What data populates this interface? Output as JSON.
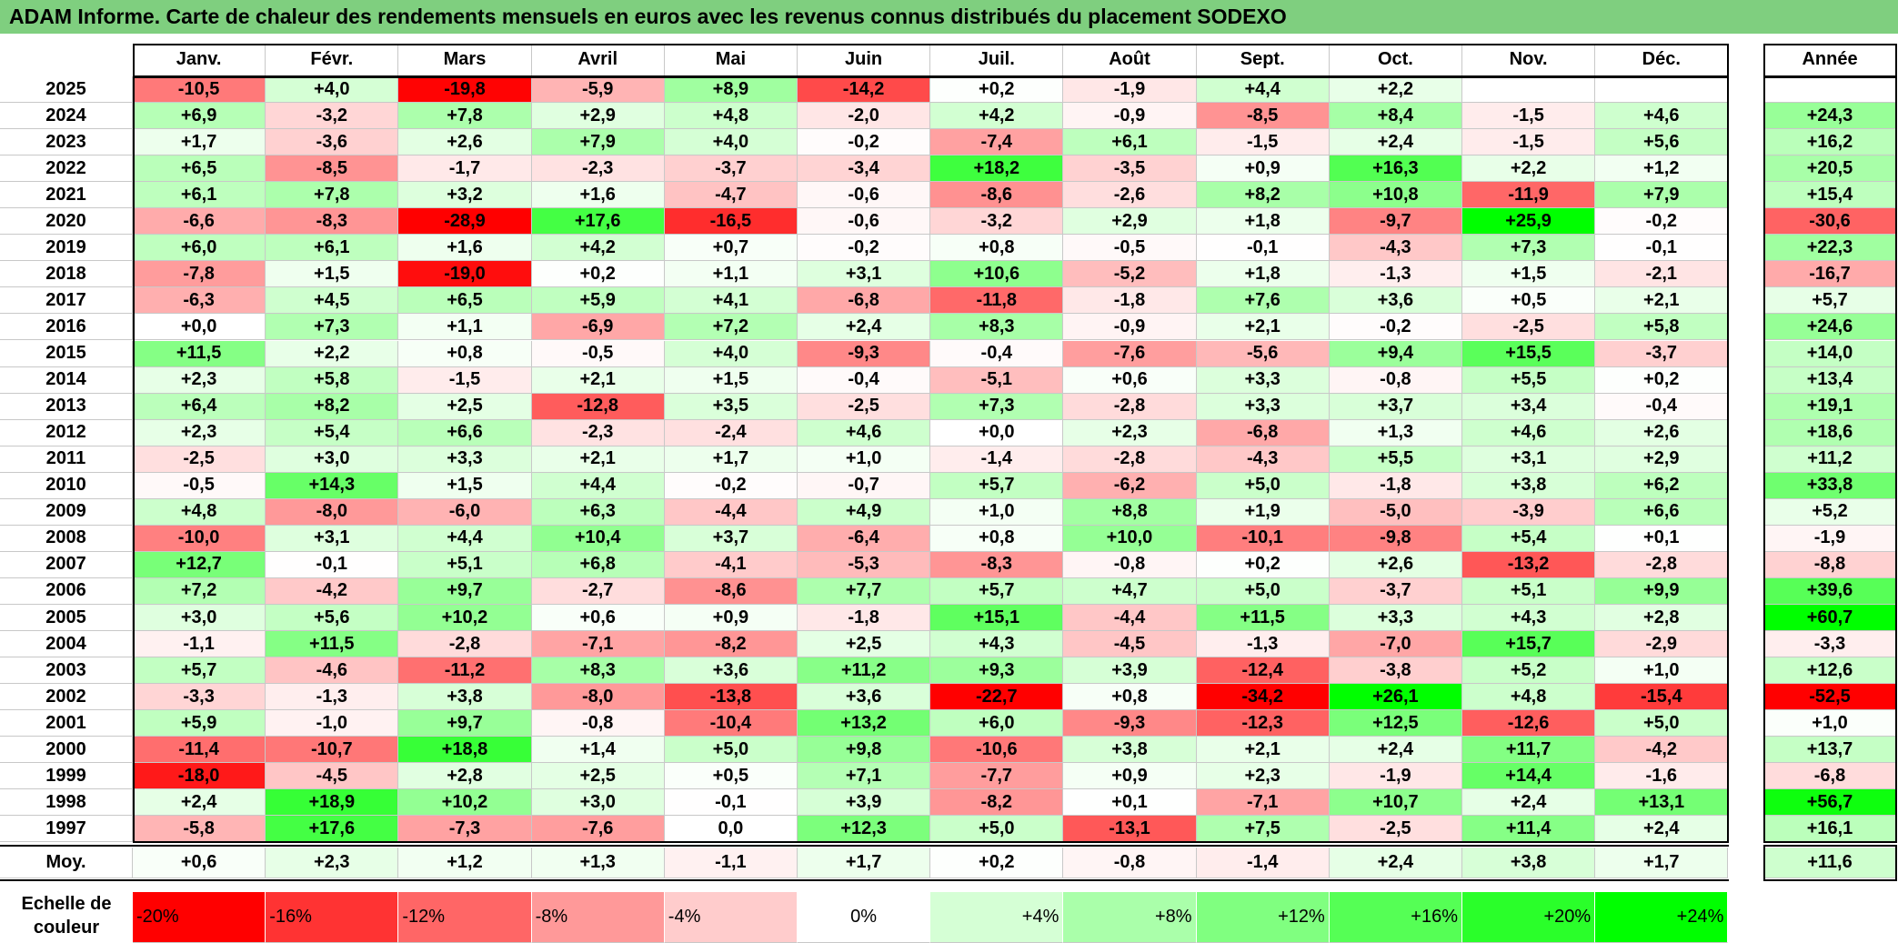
{
  "title": "ADAM Informe. Carte de chaleur des rendements mensuels en euros avec les revenus connus distribués du placement SODEXO",
  "chart_data": {
    "type": "heatmap",
    "columns": [
      "Janv.",
      "Févr.",
      "Mars",
      "Avril",
      "Mai",
      "Juin",
      "Juil.",
      "Août",
      "Sept.",
      "Oct.",
      "Nov.",
      "Déc."
    ],
    "year_column": "Année",
    "rows": [
      {
        "label": "2025",
        "values": [
          "-10,5",
          "+4,0",
          "-19,8",
          "-5,9",
          "+8,9",
          "-14,2",
          "+0,2",
          "-1,9",
          "+4,4",
          "+2,2",
          "",
          ""
        ],
        "year": ""
      },
      {
        "label": "2024",
        "values": [
          "+6,9",
          "-3,2",
          "+7,8",
          "+2,9",
          "+4,8",
          "-2,0",
          "+4,2",
          "-0,9",
          "-8,5",
          "+8,4",
          "-1,5",
          "+4,6"
        ],
        "year": "+24,3"
      },
      {
        "label": "2023",
        "values": [
          "+1,7",
          "-3,6",
          "+2,6",
          "+7,9",
          "+4,0",
          "-0,2",
          "-7,4",
          "+6,1",
          "-1,5",
          "+2,4",
          "-1,5",
          "+5,6"
        ],
        "year": "+16,2"
      },
      {
        "label": "2022",
        "values": [
          "+6,5",
          "-8,5",
          "-1,7",
          "-2,3",
          "-3,7",
          "-3,4",
          "+18,2",
          "-3,5",
          "+0,9",
          "+16,3",
          "+2,2",
          "+1,2"
        ],
        "year": "+20,5"
      },
      {
        "label": "2021",
        "values": [
          "+6,1",
          "+7,8",
          "+3,2",
          "+1,6",
          "-4,7",
          "-0,6",
          "-8,6",
          "-2,6",
          "+8,2",
          "+10,8",
          "-11,9",
          "+7,9"
        ],
        "year": "+15,4"
      },
      {
        "label": "2020",
        "values": [
          "-6,6",
          "-8,3",
          "-28,9",
          "+17,6",
          "-16,5",
          "-0,6",
          "-3,2",
          "+2,9",
          "+1,8",
          "-9,7",
          "+25,9",
          "-0,2"
        ],
        "year": "-30,6"
      },
      {
        "label": "2019",
        "values": [
          "+6,0",
          "+6,1",
          "+1,6",
          "+4,2",
          "+0,7",
          "-0,2",
          "+0,8",
          "-0,5",
          "-0,1",
          "-4,3",
          "+7,3",
          "-0,1"
        ],
        "year": "+22,3"
      },
      {
        "label": "2018",
        "values": [
          "-7,8",
          "+1,5",
          "-19,0",
          "+0,2",
          "+1,1",
          "+3,1",
          "+10,6",
          "-5,2",
          "+1,8",
          "-1,3",
          "+1,5",
          "-2,1"
        ],
        "year": "-16,7"
      },
      {
        "label": "2017",
        "values": [
          "-6,3",
          "+4,5",
          "+6,5",
          "+5,9",
          "+4,1",
          "-6,8",
          "-11,8",
          "-1,8",
          "+7,6",
          "+3,6",
          "+0,5",
          "+2,1"
        ],
        "year": "+5,7"
      },
      {
        "label": "2016",
        "values": [
          "+0,0",
          "+7,3",
          "+1,1",
          "-6,9",
          "+7,2",
          "+2,4",
          "+8,3",
          "-0,9",
          "+2,1",
          "-0,2",
          "-2,5",
          "+5,8"
        ],
        "year": "+24,6"
      },
      {
        "label": "2015",
        "values": [
          "+11,5",
          "+2,2",
          "+0,8",
          "-0,5",
          "+4,0",
          "-9,3",
          "-0,4",
          "-7,6",
          "-5,6",
          "+9,4",
          "+15,5",
          "-3,7"
        ],
        "year": "+14,0"
      },
      {
        "label": "2014",
        "values": [
          "+2,3",
          "+5,8",
          "-1,5",
          "+2,1",
          "+1,5",
          "-0,4",
          "-5,1",
          "+0,6",
          "+3,3",
          "-0,8",
          "+5,5",
          "+0,2"
        ],
        "year": "+13,4"
      },
      {
        "label": "2013",
        "values": [
          "+6,4",
          "+8,2",
          "+2,5",
          "-12,8",
          "+3,5",
          "-2,5",
          "+7,3",
          "-2,8",
          "+3,3",
          "+3,7",
          "+3,4",
          "-0,4"
        ],
        "year": "+19,1"
      },
      {
        "label": "2012",
        "values": [
          "+2,3",
          "+5,4",
          "+6,6",
          "-2,3",
          "-2,4",
          "+4,6",
          "+0,0",
          "+2,3",
          "-6,8",
          "+1,3",
          "+4,6",
          "+2,6"
        ],
        "year": "+18,6"
      },
      {
        "label": "2011",
        "values": [
          "-2,5",
          "+3,0",
          "+3,3",
          "+2,1",
          "+1,7",
          "+1,0",
          "-1,4",
          "-2,8",
          "-4,3",
          "+5,5",
          "+3,1",
          "+2,9"
        ],
        "year": "+11,2"
      },
      {
        "label": "2010",
        "values": [
          "-0,5",
          "+14,3",
          "+1,5",
          "+4,4",
          "-0,2",
          "-0,7",
          "+5,7",
          "-6,2",
          "+5,0",
          "-1,8",
          "+3,8",
          "+6,2"
        ],
        "year": "+33,8"
      },
      {
        "label": "2009",
        "values": [
          "+4,8",
          "-8,0",
          "-6,0",
          "+6,3",
          "-4,4",
          "+4,9",
          "+1,0",
          "+8,8",
          "+1,9",
          "-5,0",
          "-3,9",
          "+6,6"
        ],
        "year": "+5,2"
      },
      {
        "label": "2008",
        "values": [
          "-10,0",
          "+3,1",
          "+4,4",
          "+10,4",
          "+3,7",
          "-6,4",
          "+0,8",
          "+10,0",
          "-10,1",
          "-9,8",
          "+5,4",
          "+0,1"
        ],
        "year": "-1,9"
      },
      {
        "label": "2007",
        "values": [
          "+12,7",
          "-0,1",
          "+5,1",
          "+6,8",
          "-4,1",
          "-5,3",
          "-8,3",
          "-0,8",
          "+0,2",
          "+2,6",
          "-13,2",
          "-2,8"
        ],
        "year": "-8,8"
      },
      {
        "label": "2006",
        "values": [
          "+7,2",
          "-4,2",
          "+9,7",
          "-2,7",
          "-8,6",
          "+7,7",
          "+5,7",
          "+4,7",
          "+5,0",
          "-3,7",
          "+5,1",
          "+9,9"
        ],
        "year": "+39,6"
      },
      {
        "label": "2005",
        "values": [
          "+3,0",
          "+5,6",
          "+10,2",
          "+0,6",
          "+0,9",
          "-1,8",
          "+15,1",
          "-4,4",
          "+11,5",
          "+3,3",
          "+4,3",
          "+2,8"
        ],
        "year": "+60,7"
      },
      {
        "label": "2004",
        "values": [
          "-1,1",
          "+11,5",
          "-2,8",
          "-7,1",
          "-8,2",
          "+2,5",
          "+4,3",
          "-4,5",
          "-1,3",
          "-7,0",
          "+15,7",
          "-2,9"
        ],
        "year": "-3,3"
      },
      {
        "label": "2003",
        "values": [
          "+5,7",
          "-4,6",
          "-11,2",
          "+8,3",
          "+3,6",
          "+11,2",
          "+9,3",
          "+3,9",
          "-12,4",
          "-3,8",
          "+5,2",
          "+1,0"
        ],
        "year": "+12,6"
      },
      {
        "label": "2002",
        "values": [
          "-3,3",
          "-1,3",
          "+3,8",
          "-8,0",
          "-13,8",
          "+3,6",
          "-22,7",
          "+0,8",
          "-34,2",
          "+26,1",
          "+4,8",
          "-15,4"
        ],
        "year": "-52,5"
      },
      {
        "label": "2001",
        "values": [
          "+5,9",
          "-1,0",
          "+9,7",
          "-0,8",
          "-10,4",
          "+13,2",
          "+6,0",
          "-9,3",
          "-12,3",
          "+12,5",
          "-12,6",
          "+5,0"
        ],
        "year": "+1,0"
      },
      {
        "label": "2000",
        "values": [
          "-11,4",
          "-10,7",
          "+18,8",
          "+1,4",
          "+5,0",
          "+9,8",
          "-10,6",
          "+3,8",
          "+2,1",
          "+2,4",
          "+11,7",
          "-4,2"
        ],
        "year": "+13,7"
      },
      {
        "label": "1999",
        "values": [
          "-18,0",
          "-4,5",
          "+2,8",
          "+2,5",
          "+0,5",
          "+7,1",
          "-7,7",
          "+0,9",
          "+2,3",
          "-1,9",
          "+14,4",
          "-1,6"
        ],
        "year": "-6,8"
      },
      {
        "label": "1998",
        "values": [
          "+2,4",
          "+18,9",
          "+10,2",
          "+3,0",
          "-0,1",
          "+3,9",
          "-8,2",
          "+0,1",
          "-7,1",
          "+10,7",
          "+2,4",
          "+13,1"
        ],
        "year": "+56,7"
      },
      {
        "label": "1997",
        "values": [
          "-5,8",
          "+17,6",
          "-7,3",
          "-7,6",
          "0,0",
          "+12,3",
          "+5,0",
          "-13,1",
          "+7,5",
          "-2,5",
          "+11,4",
          "+2,4"
        ],
        "year": "+16,1"
      }
    ],
    "average": {
      "label": "Moy.",
      "values": [
        "+0,6",
        "+2,3",
        "+1,2",
        "+1,3",
        "-1,1",
        "+1,7",
        "+0,2",
        "-0,8",
        "-1,4",
        "+2,4",
        "+3,8",
        "+1,7"
      ],
      "year": "+11,6"
    },
    "legend": {
      "label": "Echelle de couleur",
      "steps": [
        {
          "text": "-20%",
          "value": -20,
          "align": "left"
        },
        {
          "text": "-16%",
          "value": -16,
          "align": "left"
        },
        {
          "text": "-12%",
          "value": -12,
          "align": "left"
        },
        {
          "text": "-8%",
          "value": -8,
          "align": "left"
        },
        {
          "text": "-4%",
          "value": -4,
          "align": "left"
        },
        {
          "text": "0%",
          "value": 0,
          "align": "center"
        },
        {
          "text": "+4%",
          "value": 4,
          "align": "right"
        },
        {
          "text": "+8%",
          "value": 8,
          "align": "right"
        },
        {
          "text": "+12%",
          "value": 12,
          "align": "right"
        },
        {
          "text": "+16%",
          "value": 16,
          "align": "right"
        },
        {
          "text": "+20%",
          "value": 20,
          "align": "right"
        },
        {
          "text": "+24%",
          "value": 24,
          "align": "right"
        }
      ]
    },
    "color_scale": {
      "min_value": -20,
      "max_value": 24,
      "negative_color": "#ff0000",
      "neutral_color": "#ffffff",
      "positive_color": "#00ff00"
    }
  }
}
